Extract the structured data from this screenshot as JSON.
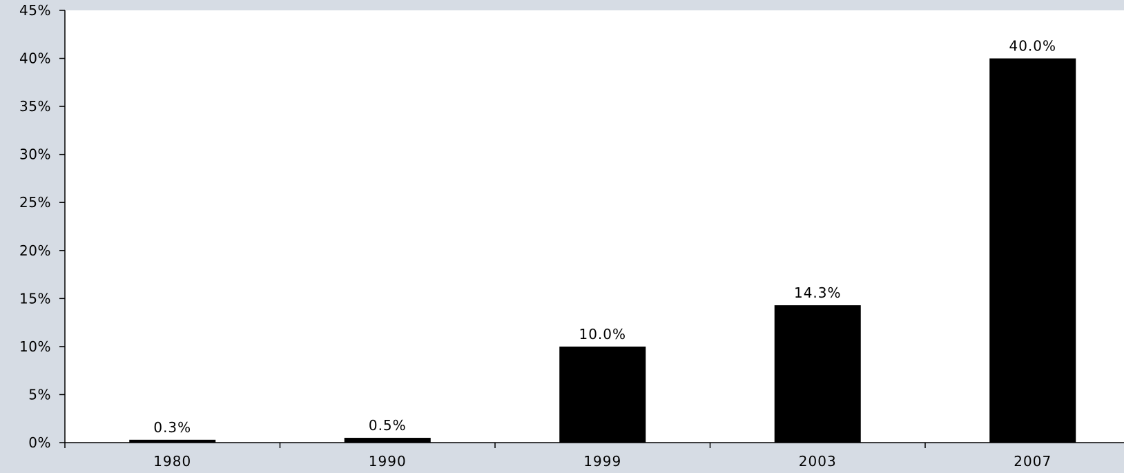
{
  "colors": {
    "background": "#d6dce4",
    "plot_area": "#ffffff",
    "bar": "#000000",
    "axis": "#000000"
  },
  "chart_data": {
    "type": "bar",
    "title": "",
    "xlabel": "",
    "ylabel": "",
    "categories": [
      "1980",
      "1990",
      "1999",
      "2003",
      "2007"
    ],
    "values": [
      0.3,
      0.5,
      10.0,
      14.3,
      40.0
    ],
    "data_labels": [
      "0.3%",
      "0.5%",
      "10.0%",
      "14.3%",
      "40.0%"
    ],
    "ylim": [
      0,
      45
    ],
    "y_ticks": [
      0,
      5,
      10,
      15,
      20,
      25,
      30,
      35,
      40,
      45
    ],
    "y_tick_labels": [
      "0%",
      "5%",
      "10%",
      "15%",
      "20%",
      "25%",
      "30%",
      "35%",
      "40%",
      "45%"
    ],
    "grid": false,
    "legend": "none"
  }
}
